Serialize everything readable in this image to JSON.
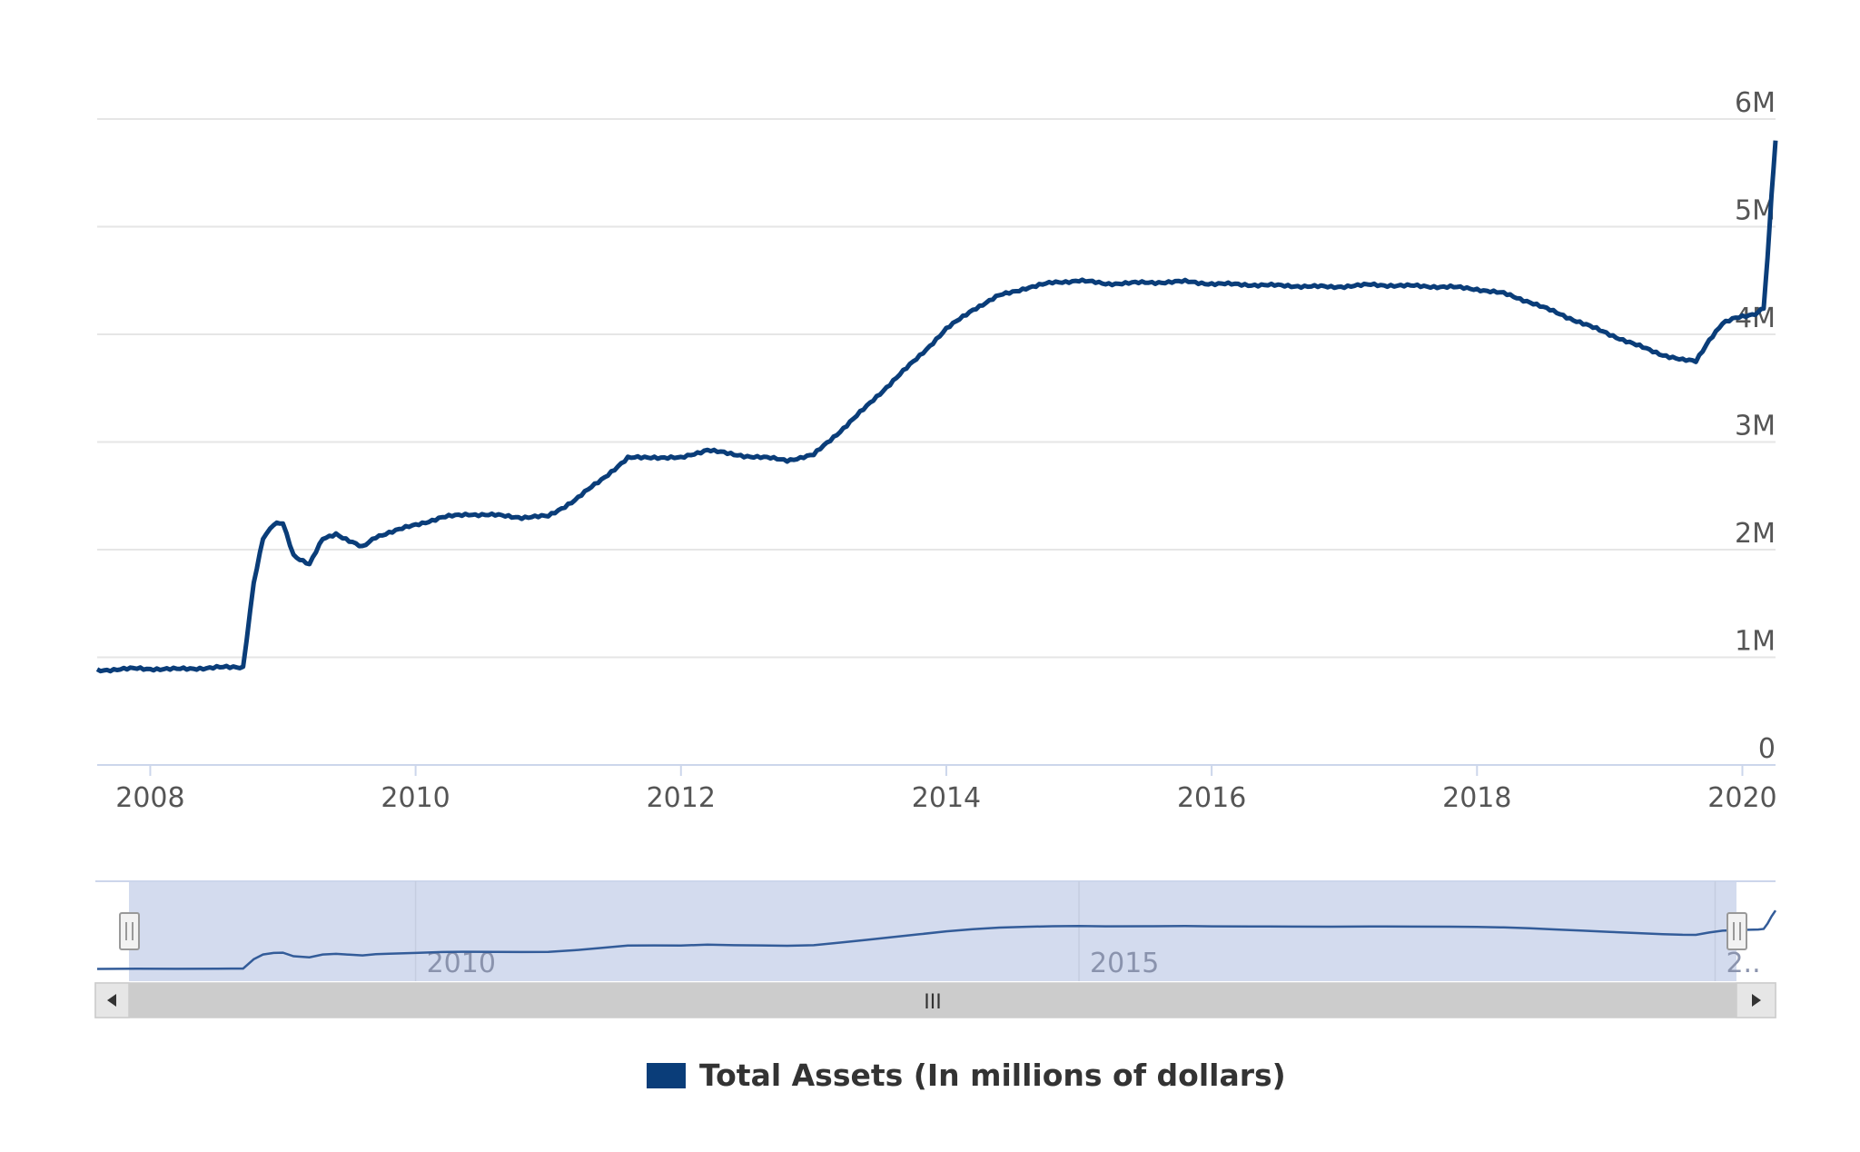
{
  "chart_data": {
    "type": "line",
    "title": "",
    "xlabel": "",
    "ylabel": "",
    "x_range": [
      2007.6,
      2020.25
    ],
    "ylim": [
      0,
      6000000
    ],
    "y_ticks": [
      {
        "value": 0,
        "label": "0"
      },
      {
        "value": 1000000,
        "label": "1M"
      },
      {
        "value": 2000000,
        "label": "2M"
      },
      {
        "value": 3000000,
        "label": "3M"
      },
      {
        "value": 4000000,
        "label": "4M"
      },
      {
        "value": 5000000,
        "label": "5M"
      },
      {
        "value": 6000000,
        "label": "6M"
      }
    ],
    "x_ticks": [
      {
        "value": 2008,
        "label": "2008"
      },
      {
        "value": 2010,
        "label": "2010"
      },
      {
        "value": 2012,
        "label": "2012"
      },
      {
        "value": 2014,
        "label": "2014"
      },
      {
        "value": 2016,
        "label": "2016"
      },
      {
        "value": 2018,
        "label": "2018"
      },
      {
        "value": 2020,
        "label": "2020"
      }
    ],
    "grid": true,
    "legend": "bottom-center",
    "series": [
      {
        "name": "Total Assets (In millions of dollars)",
        "color": "#0a3d79",
        "x": [
          2007.6,
          2007.9,
          2008.2,
          2008.5,
          2008.7,
          2008.78,
          2008.85,
          2008.93,
          2009.0,
          2009.08,
          2009.2,
          2009.3,
          2009.4,
          2009.5,
          2009.6,
          2009.7,
          2009.8,
          2010.0,
          2010.2,
          2010.4,
          2010.6,
          2010.8,
          2011.0,
          2011.2,
          2011.4,
          2011.6,
          2011.8,
          2012.0,
          2012.2,
          2012.4,
          2012.6,
          2012.8,
          2013.0,
          2013.2,
          2013.4,
          2013.6,
          2013.8,
          2014.0,
          2014.2,
          2014.4,
          2014.6,
          2014.8,
          2015.0,
          2015.2,
          2015.5,
          2015.8,
          2016.0,
          2016.3,
          2016.6,
          2016.9,
          2017.2,
          2017.5,
          2017.8,
          2018.0,
          2018.2,
          2018.4,
          2018.6,
          2018.8,
          2019.0,
          2019.2,
          2019.4,
          2019.55,
          2019.65,
          2019.75,
          2019.85,
          2019.95,
          2020.05,
          2020.12,
          2020.16,
          2020.19,
          2020.22,
          2020.25
        ],
        "y": [
          880000,
          895000,
          890000,
          905000,
          910000,
          1700000,
          2100000,
          2230000,
          2250000,
          1950000,
          1860000,
          2100000,
          2150000,
          2080000,
          2020000,
          2120000,
          2160000,
          2230000,
          2300000,
          2330000,
          2320000,
          2300000,
          2310000,
          2460000,
          2650000,
          2850000,
          2860000,
          2850000,
          2930000,
          2880000,
          2860000,
          2830000,
          2880000,
          3100000,
          3330000,
          3570000,
          3800000,
          4050000,
          4230000,
          4360000,
          4430000,
          4480000,
          4500000,
          4470000,
          4480000,
          4490000,
          4470000,
          4460000,
          4450000,
          4440000,
          4460000,
          4450000,
          4440000,
          4420000,
          4380000,
          4300000,
          4200000,
          4100000,
          4000000,
          3900000,
          3810000,
          3760000,
          3750000,
          3950000,
          4100000,
          4150000,
          4180000,
          4200000,
          4250000,
          4700000,
          5300000,
          5800000
        ]
      }
    ]
  },
  "navigator": {
    "labels": [
      {
        "value": 2010,
        "label": "2010"
      },
      {
        "value": 2015,
        "label": "2015"
      },
      {
        "value": 2020,
        "label": "2.."
      }
    ],
    "scrollbar_grip": "III"
  },
  "colors": {
    "series": "#0a3d79",
    "grid": "#e6e6e6",
    "axis": "#ccd6eb",
    "navigator_fill": "#d3dbee",
    "scrollbar_track": "#f2f2f2",
    "scrollbar_thumb": "#cccccc"
  }
}
